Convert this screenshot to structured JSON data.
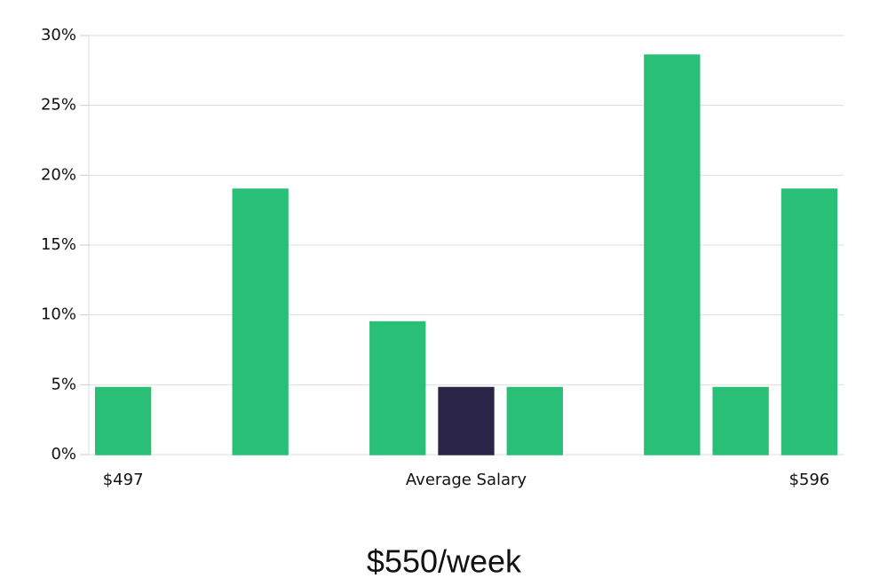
{
  "chart_data": {
    "type": "bar",
    "categories": [
      "$497",
      null,
      null,
      null,
      null,
      "Average Salary",
      null,
      null,
      null,
      null,
      "$596"
    ],
    "values": [
      4.8,
      0,
      19,
      0,
      9.5,
      4.8,
      4.8,
      0,
      28.6,
      4.8,
      19
    ],
    "colors": [
      "#2abf76",
      "#2abf76",
      "#2abf76",
      "#2abf76",
      "#2abf76",
      "#2a2547",
      "#2abf76",
      "#2abf76",
      "#2abf76",
      "#2abf76",
      "#2abf76"
    ],
    "ylim": [
      0,
      30
    ],
    "yticks": [
      {
        "value": 0,
        "label": "0%"
      },
      {
        "value": 5,
        "label": "5%"
      },
      {
        "value": 10,
        "label": "10%"
      },
      {
        "value": 15,
        "label": "15%"
      },
      {
        "value": 20,
        "label": "20%"
      },
      {
        "value": 25,
        "label": "25%"
      },
      {
        "value": 30,
        "label": "30%"
      }
    ],
    "grid": true,
    "subtitle": "$550/week"
  }
}
